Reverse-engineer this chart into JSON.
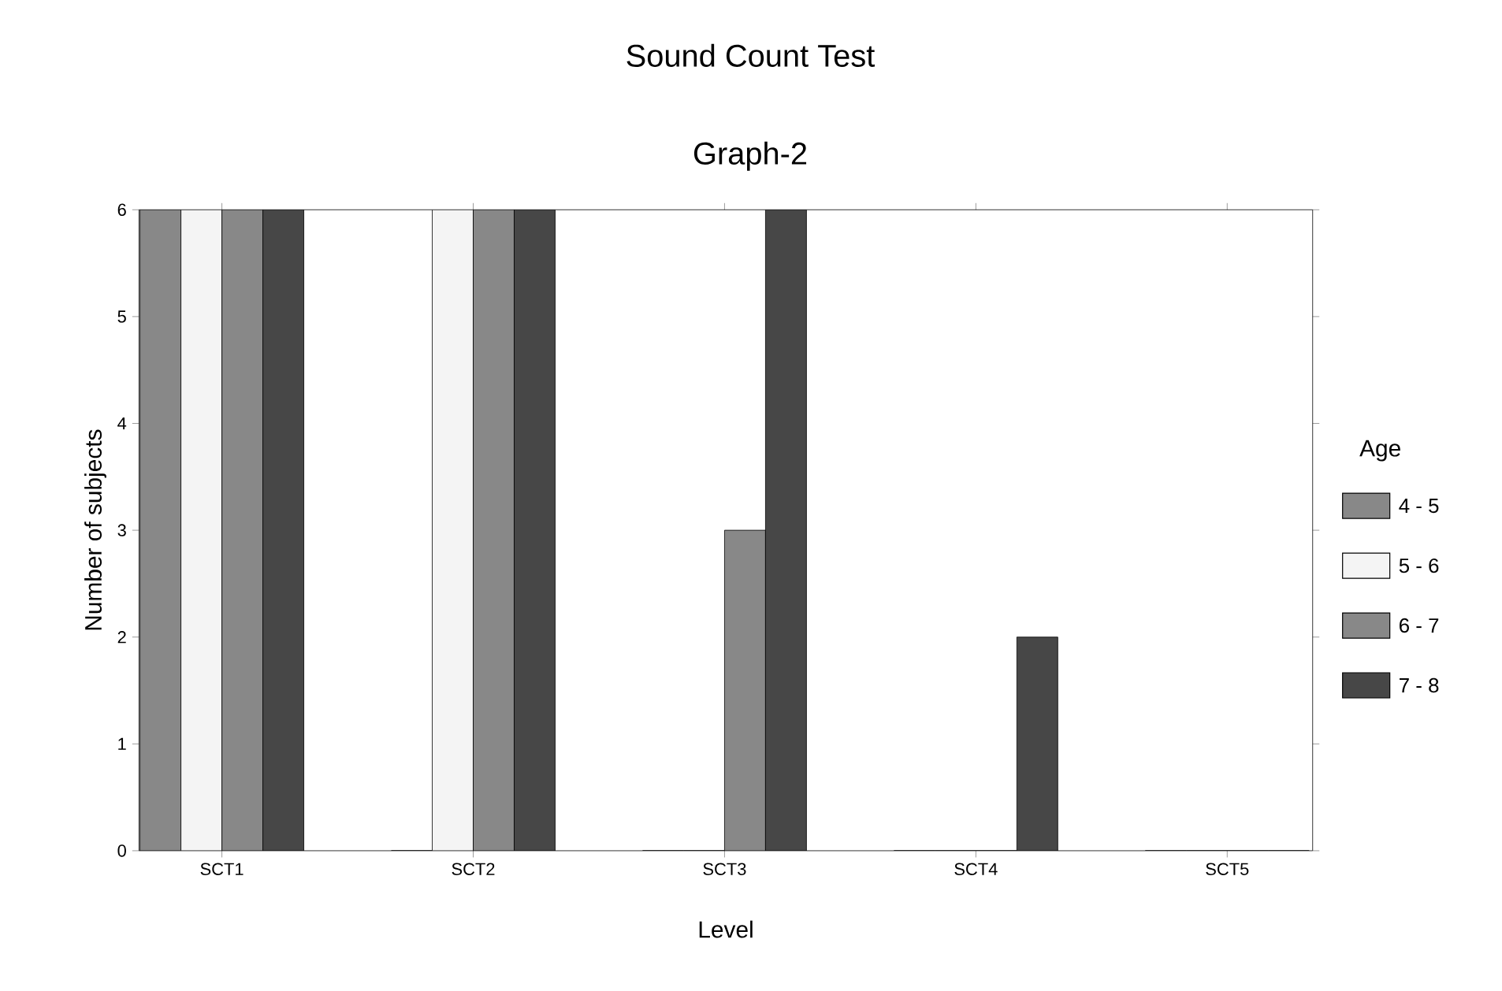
{
  "chart_data": {
    "type": "bar",
    "title": "Sound Count Test",
    "subtitle": "Graph-2",
    "xlabel": "Level",
    "ylabel": "Number of subjects",
    "legend_title": "Age",
    "categories": [
      "SCT1",
      "SCT2",
      "SCT3",
      "SCT4",
      "SCT5"
    ],
    "series": [
      {
        "name": "4 - 5",
        "color": "#888888",
        "values": [
          6,
          0,
          0,
          0,
          0
        ]
      },
      {
        "name": "5 - 6",
        "color": "#f4f4f4",
        "values": [
          6,
          6,
          0,
          0,
          0
        ]
      },
      {
        "name": "6 - 7",
        "color": "#888888",
        "values": [
          6,
          6,
          3,
          0,
          0
        ]
      },
      {
        "name": "7 - 8",
        "color": "#474747",
        "values": [
          6,
          6,
          6,
          2,
          0
        ]
      }
    ],
    "ylim": [
      0,
      6
    ],
    "yticks": [
      0,
      1,
      2,
      3,
      4,
      5,
      6
    ],
    "legend": "right"
  }
}
